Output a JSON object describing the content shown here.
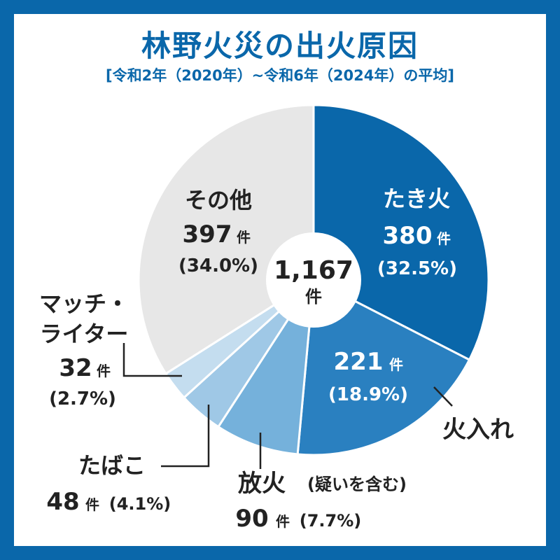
{
  "title": "林野火災の出火原因",
  "subtitle": "[令和2年（2020年）~令和6年（2024年）の平均]",
  "colors": {
    "frame": "#0a67aa",
    "title": "#0a67aa",
    "text_dark": "#222222",
    "text_light": "#ffffff",
    "leader": "#222222"
  },
  "chart_data": {
    "type": "pie",
    "total": {
      "value": "1,167",
      "unit": "件"
    },
    "slices": [
      {
        "key": "takibi",
        "name": "たき火",
        "count": 380,
        "count_text": "380",
        "unit": "件",
        "percent": 32.5,
        "percent_text": "(32.5%)",
        "color": "#0a67aa"
      },
      {
        "key": "hiire",
        "name": "火入れ",
        "count": 221,
        "count_text": "221",
        "unit": "件",
        "percent": 18.9,
        "percent_text": "(18.9%)",
        "color": "#2a80c0"
      },
      {
        "key": "houka",
        "name": "放火",
        "name_note": "(疑いを含む)",
        "count": 90,
        "count_text": "90",
        "unit": "件",
        "percent": 7.7,
        "percent_text": "(7.7%)",
        "color": "#75b1db"
      },
      {
        "key": "tabako",
        "name": "たばこ",
        "count": 48,
        "count_text": "48",
        "unit": "件",
        "percent": 4.1,
        "percent_text": "(4.1%)",
        "color": "#9fc8e6"
      },
      {
        "key": "match",
        "name_line1": "マッチ・",
        "name_line2": "ライター",
        "count": 32,
        "count_text": "32",
        "unit": "件",
        "percent": 2.7,
        "percent_text": "(2.7%)",
        "color": "#c4ddef"
      },
      {
        "key": "other",
        "name": "その他",
        "count": 397,
        "count_text": "397",
        "unit": "件",
        "percent": 34.0,
        "percent_text": "(34.0%)",
        "color": "#e7e7e7"
      }
    ]
  }
}
